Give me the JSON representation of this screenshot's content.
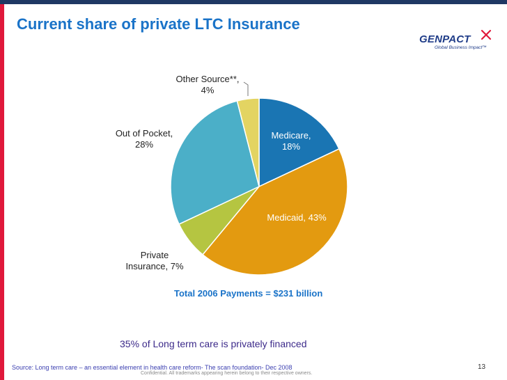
{
  "slide": {
    "title": "Current share of private LTC Insurance",
    "total_label": "Total 2006 Payments = $231 billion",
    "footnote": "35% of Long term care is privately financed",
    "source": "Source: Long term care – an essential element in health care reform- The scan foundation- Dec 2008",
    "confidential": "Confidential.  All trademarks appearing herein belong to their respective owners.",
    "page_number": "13"
  },
  "logo": {
    "name": "GENPACT",
    "tagline": "Global Business Impact™",
    "color": "#1f3c88",
    "accent": "#e0193b"
  },
  "colors": {
    "title": "#1a73c8",
    "top_bar": "#1f3864",
    "left_bar": "#e0193b"
  },
  "chart_data": {
    "type": "pie",
    "title": "",
    "start_angle_deg": 0,
    "direction": "clockwise",
    "slices": [
      {
        "name": "Medicare",
        "value": 18,
        "color": "#1a75b3",
        "label_lines": [
          "Medicare,",
          "18%"
        ],
        "label_inside": true
      },
      {
        "name": "Medicaid",
        "value": 43,
        "color": "#e39a10",
        "label_lines": [
          "Medicaid, 43%"
        ],
        "label_inside": true
      },
      {
        "name": "Private Insurance",
        "value": 7,
        "color": "#b5c541",
        "label_lines": [
          "Private",
          "Insurance, 7%"
        ],
        "label_inside": false
      },
      {
        "name": "Out of Pocket",
        "value": 28,
        "color": "#4bafc8",
        "label_lines": [
          "Out of Pocket,",
          "28%"
        ],
        "label_inside": false
      },
      {
        "name": "Other Source**",
        "value": 4,
        "color": "#e3d462",
        "label_lines": [
          "Other Source**,",
          "4%"
        ],
        "label_inside": false
      }
    ]
  }
}
